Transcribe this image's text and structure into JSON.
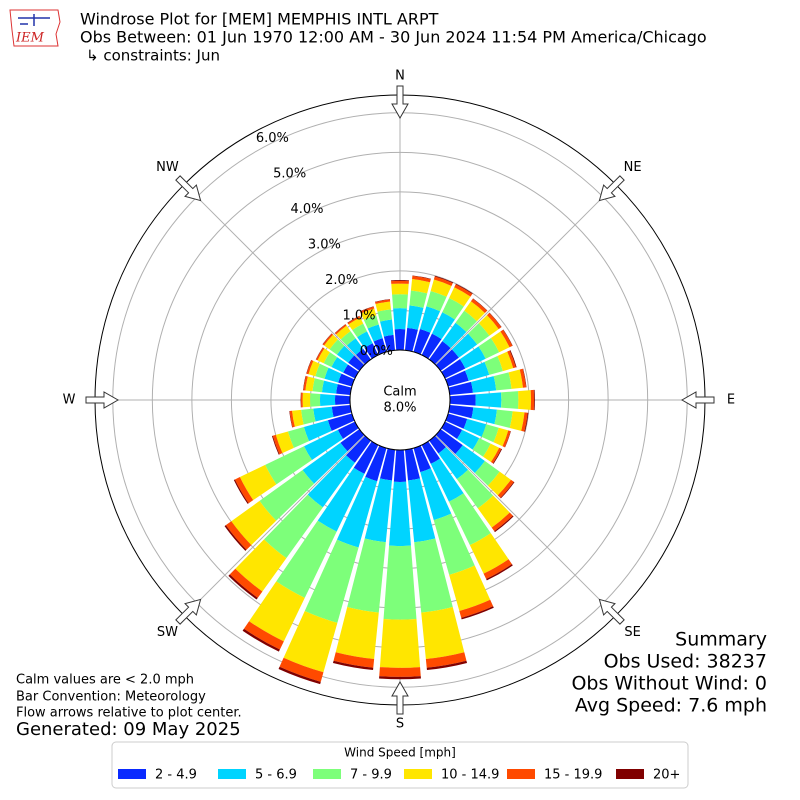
{
  "chart_data": {
    "type": "windrose",
    "title": "Windrose Plot for [MEM] MEMPHIS INTL ARPT",
    "subtitle": "Obs Between: 01 Jun 1970 12:00 AM - 30 Jun 2024 11:54 PM America/Chicago",
    "constraints": "↳ constraints: Jun",
    "logo_text": "IEM",
    "x": [
      0,
      10,
      20,
      30,
      40,
      50,
      60,
      70,
      80,
      90,
      100,
      110,
      120,
      130,
      140,
      150,
      160,
      170,
      180,
      190,
      200,
      210,
      220,
      230,
      240,
      250,
      260,
      270,
      280,
      290,
      300,
      310,
      320,
      330,
      340,
      350
    ],
    "xticks": [
      {
        "value": 0,
        "label": "N"
      },
      {
        "value": 45,
        "label": "NE"
      },
      {
        "value": 90,
        "label": "E"
      },
      {
        "value": 135,
        "label": "SE"
      },
      {
        "value": 180,
        "label": "S"
      },
      {
        "value": 225,
        "label": "SW"
      },
      {
        "value": 270,
        "label": "W"
      },
      {
        "value": 315,
        "label": "NW"
      }
    ],
    "ylim": [
      0,
      6.45
    ],
    "yticks": [
      {
        "value": 0,
        "label": "0.0%"
      },
      {
        "value": 1,
        "label": "1.0%"
      },
      {
        "value": 2,
        "label": "2.0%"
      },
      {
        "value": 3,
        "label": "3.0%"
      },
      {
        "value": 4,
        "label": "4.0%"
      },
      {
        "value": 5,
        "label": "5.0%"
      },
      {
        "value": 6,
        "label": "6.0%"
      }
    ],
    "grid": true,
    "calm_label": "Calm",
    "calm_value": 8.0,
    "calm_value_label": "8.0%",
    "legend_title": "Wind Speed [mph]",
    "legend_position": "bottom",
    "series": [
      {
        "name": "2 - 4.9",
        "color": "#0a2aff",
        "values": [
          0.53,
          0.57,
          0.6,
          0.6,
          0.57,
          0.57,
          0.57,
          0.54,
          0.59,
          0.65,
          0.6,
          0.5,
          0.48,
          0.69,
          0.4,
          0.53,
          0.63,
          0.78,
          0.81,
          0.78,
          0.87,
          0.81,
          0.69,
          0.59,
          0.48,
          0.63,
          0.47,
          0.38,
          0.36,
          0.36,
          0.33,
          0.35,
          0.33,
          0.33,
          0.36,
          0.39
        ]
      },
      {
        "name": "5 - 6.9",
        "color": "#00d4ff",
        "values": [
          0.53,
          0.57,
          0.6,
          0.6,
          0.57,
          0.57,
          0.57,
          0.54,
          0.59,
          0.65,
          0.6,
          0.5,
          0.48,
          0.69,
          0.8,
          1.06,
          1.26,
          1.57,
          1.62,
          1.57,
          1.74,
          1.62,
          1.39,
          1.18,
          0.95,
          0.63,
          0.47,
          0.38,
          0.36,
          0.36,
          0.33,
          0.35,
          0.33,
          0.33,
          0.36,
          0.39
        ]
      },
      {
        "name": "7 - 9.9",
        "color": "#7dff7a",
        "values": [
          0.35,
          0.38,
          0.4,
          0.4,
          0.38,
          0.38,
          0.38,
          0.36,
          0.39,
          0.43,
          0.4,
          0.33,
          0.32,
          0.46,
          0.91,
          1.22,
          1.44,
          1.79,
          1.86,
          1.79,
          1.98,
          1.86,
          1.58,
          1.34,
          1.09,
          0.42,
          0.31,
          0.25,
          0.24,
          0.24,
          0.22,
          0.23,
          0.22,
          0.22,
          0.24,
          0.26
        ]
      },
      {
        "name": "10 - 14.9",
        "color": "#ffe600",
        "values": [
          0.27,
          0.29,
          0.3,
          0.3,
          0.29,
          0.29,
          0.29,
          0.27,
          0.29,
          0.32,
          0.3,
          0.25,
          0.24,
          0.35,
          0.6,
          0.8,
          0.95,
          1.18,
          1.22,
          1.18,
          1.3,
          1.22,
          1.04,
          0.88,
          0.71,
          0.32,
          0.23,
          0.19,
          0.18,
          0.18,
          0.17,
          0.17,
          0.17,
          0.17,
          0.18,
          0.2
        ]
      },
      {
        "name": "15 - 19.9",
        "color": "#ff4a00",
        "values": [
          0.07,
          0.08,
          0.08,
          0.08,
          0.08,
          0.08,
          0.08,
          0.07,
          0.08,
          0.08,
          0.08,
          0.06,
          0.06,
          0.09,
          0.11,
          0.15,
          0.18,
          0.22,
          0.23,
          0.22,
          0.25,
          0.23,
          0.2,
          0.17,
          0.14,
          0.08,
          0.06,
          0.04,
          0.05,
          0.05,
          0.04,
          0.04,
          0.04,
          0.04,
          0.05,
          0.05
        ]
      },
      {
        "name": "20+",
        "color": "#800000",
        "values": [
          0.02,
          0.01,
          0.02,
          0.02,
          0.01,
          0.01,
          0.01,
          0.02,
          0.01,
          0.02,
          0.02,
          0.01,
          0.02,
          0.02,
          0.03,
          0.04,
          0.04,
          0.06,
          0.06,
          0.06,
          0.06,
          0.06,
          0.05,
          0.04,
          0.03,
          0.02,
          0.01,
          0.01,
          0.01,
          0.01,
          0.01,
          0.01,
          0.01,
          0.01,
          0.01,
          0.01
        ]
      }
    ],
    "notes": [
      "Calm values are < 2.0 mph",
      "Bar Convention: Meteorology",
      "Flow arrows relative to plot center."
    ],
    "generated": "Generated: 09 May 2025",
    "summary": [
      "Summary",
      "Obs Used: 38237",
      "Obs Without Wind: 0",
      "Avg Speed: 7.6 mph"
    ]
  }
}
